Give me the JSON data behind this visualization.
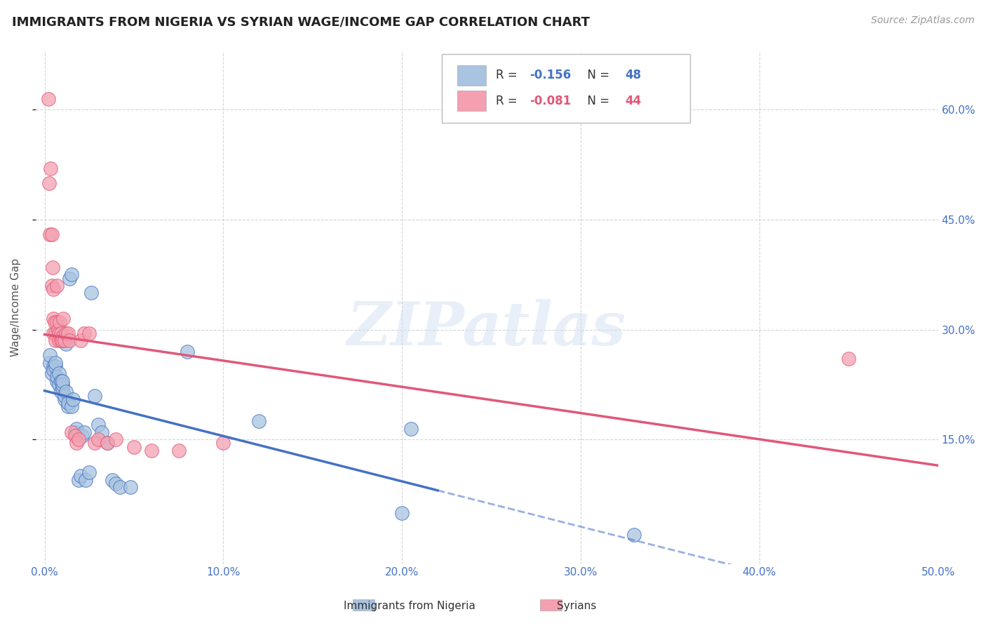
{
  "title": "IMMIGRANTS FROM NIGERIA VS SYRIAN WAGE/INCOME GAP CORRELATION CHART",
  "source": "Source: ZipAtlas.com",
  "ylabel": "Wage/Income Gap",
  "xlim": [
    -0.5,
    50.0
  ],
  "ylim": [
    -2.0,
    68.0
  ],
  "xticks": [
    0.0,
    10.0,
    20.0,
    30.0,
    40.0,
    50.0
  ],
  "xtick_labels": [
    "0.0%",
    "10.0%",
    "20.0%",
    "30.0%",
    "40.0%",
    "50.0%"
  ],
  "yticks": [
    15.0,
    30.0,
    45.0,
    60.0
  ],
  "ytick_labels": [
    "15.0%",
    "30.0%",
    "45.0%",
    "60.0%"
  ],
  "legend_r_nigeria": "-0.156",
  "legend_n_nigeria": "48",
  "legend_r_syrian": "-0.081",
  "legend_n_syrian": "44",
  "color_nigeria": "#a8c4e0",
  "color_syrian": "#f4a0b0",
  "color_nigeria_line": "#4472c4",
  "color_syrian_line": "#e05878",
  "color_axis_labels": "#4472c4",
  "watermark": "ZIPatlas",
  "nigeria_x": [
    0.3,
    0.3,
    0.4,
    0.5,
    0.5,
    0.6,
    0.6,
    0.7,
    0.7,
    0.8,
    0.8,
    0.9,
    0.9,
    1.0,
    1.0,
    1.0,
    1.1,
    1.1,
    1.2,
    1.2,
    1.3,
    1.3,
    1.4,
    1.5,
    1.5,
    1.6,
    1.7,
    1.8,
    1.9,
    2.0,
    2.1,
    2.2,
    2.3,
    2.5,
    2.6,
    2.8,
    3.0,
    3.2,
    3.5,
    3.8,
    4.0,
    4.2,
    4.8,
    8.0,
    12.0,
    20.0,
    33.0,
    20.5
  ],
  "nigeria_y": [
    25.5,
    26.5,
    24.0,
    25.0,
    24.5,
    25.0,
    25.5,
    23.0,
    23.5,
    24.0,
    22.5,
    23.0,
    21.5,
    22.0,
    22.5,
    23.0,
    20.5,
    21.0,
    21.5,
    28.0,
    19.5,
    20.0,
    37.0,
    37.5,
    19.5,
    20.5,
    16.0,
    16.5,
    9.5,
    10.0,
    15.5,
    16.0,
    9.5,
    10.5,
    35.0,
    21.0,
    17.0,
    16.0,
    14.5,
    9.5,
    9.0,
    8.5,
    8.5,
    27.0,
    17.5,
    5.0,
    2.0,
    16.5
  ],
  "syrian_x": [
    0.2,
    0.25,
    0.3,
    0.35,
    0.4,
    0.4,
    0.45,
    0.5,
    0.5,
    0.5,
    0.55,
    0.6,
    0.6,
    0.7,
    0.7,
    0.75,
    0.8,
    0.8,
    0.85,
    0.9,
    0.9,
    1.0,
    1.0,
    1.05,
    1.1,
    1.2,
    1.3,
    1.4,
    1.5,
    1.7,
    1.8,
    1.9,
    2.0,
    2.2,
    2.5,
    2.8,
    3.0,
    3.5,
    4.0,
    5.0,
    6.0,
    7.5,
    10.0,
    45.0
  ],
  "syrian_y": [
    61.5,
    50.0,
    43.0,
    52.0,
    43.0,
    36.0,
    38.5,
    35.5,
    31.5,
    29.5,
    31.0,
    29.5,
    28.5,
    36.0,
    31.0,
    30.0,
    29.5,
    28.5,
    31.0,
    29.5,
    28.5,
    29.0,
    28.5,
    31.5,
    28.5,
    29.5,
    29.5,
    28.5,
    16.0,
    15.5,
    14.5,
    15.0,
    28.5,
    29.5,
    29.5,
    14.5,
    15.0,
    14.5,
    15.0,
    14.0,
    13.5,
    13.5,
    14.5,
    26.0
  ],
  "nig_trendline_x0": 0.0,
  "nig_trendline_x1": 50.0,
  "nig_solid_end": 22.0,
  "syr_trendline_x0": 0.0,
  "syr_trendline_x1": 50.0
}
